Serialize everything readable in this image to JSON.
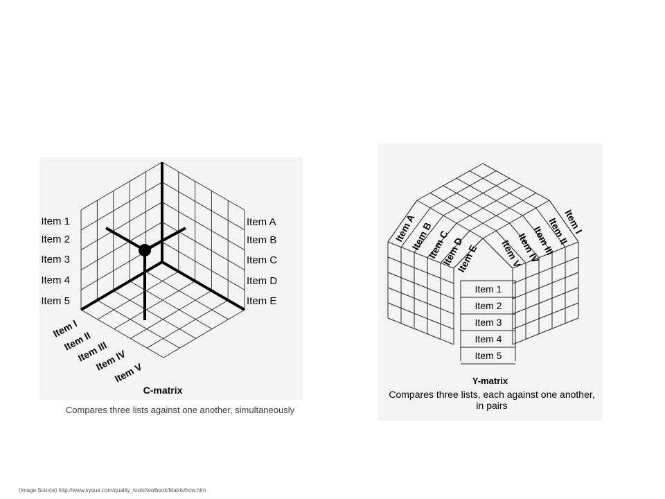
{
  "c_matrix": {
    "title": "C-matrix",
    "caption": "Compares three lists against one another, simultaneously",
    "left_items": [
      "Item 1",
      "Item 2",
      "Item 3",
      "Item 4",
      "Item 5"
    ],
    "right_items": [
      "Item A",
      "Item B",
      "Item C",
      "Item D",
      "Item E"
    ],
    "bottom_items": [
      "Item I",
      "Item II",
      "Item III",
      "Item IV",
      "Item V"
    ]
  },
  "y_matrix": {
    "title": "Y-matrix",
    "caption": "Compares three lists, each against one another, in pairs",
    "front_items": [
      "Item 1",
      "Item 2",
      "Item 3",
      "Item 4",
      "Item 5"
    ],
    "left_roof_items": [
      "Item A",
      "Item B",
      "Item C",
      "Item D",
      "Item E"
    ],
    "right_roof_items": [
      "Item V",
      "Item IV",
      "Item III",
      "Item II",
      "Item I"
    ]
  },
  "source": "(Image Source) http://www.syque.com/quality_tools/toolbook/Matrix/how.htm"
}
